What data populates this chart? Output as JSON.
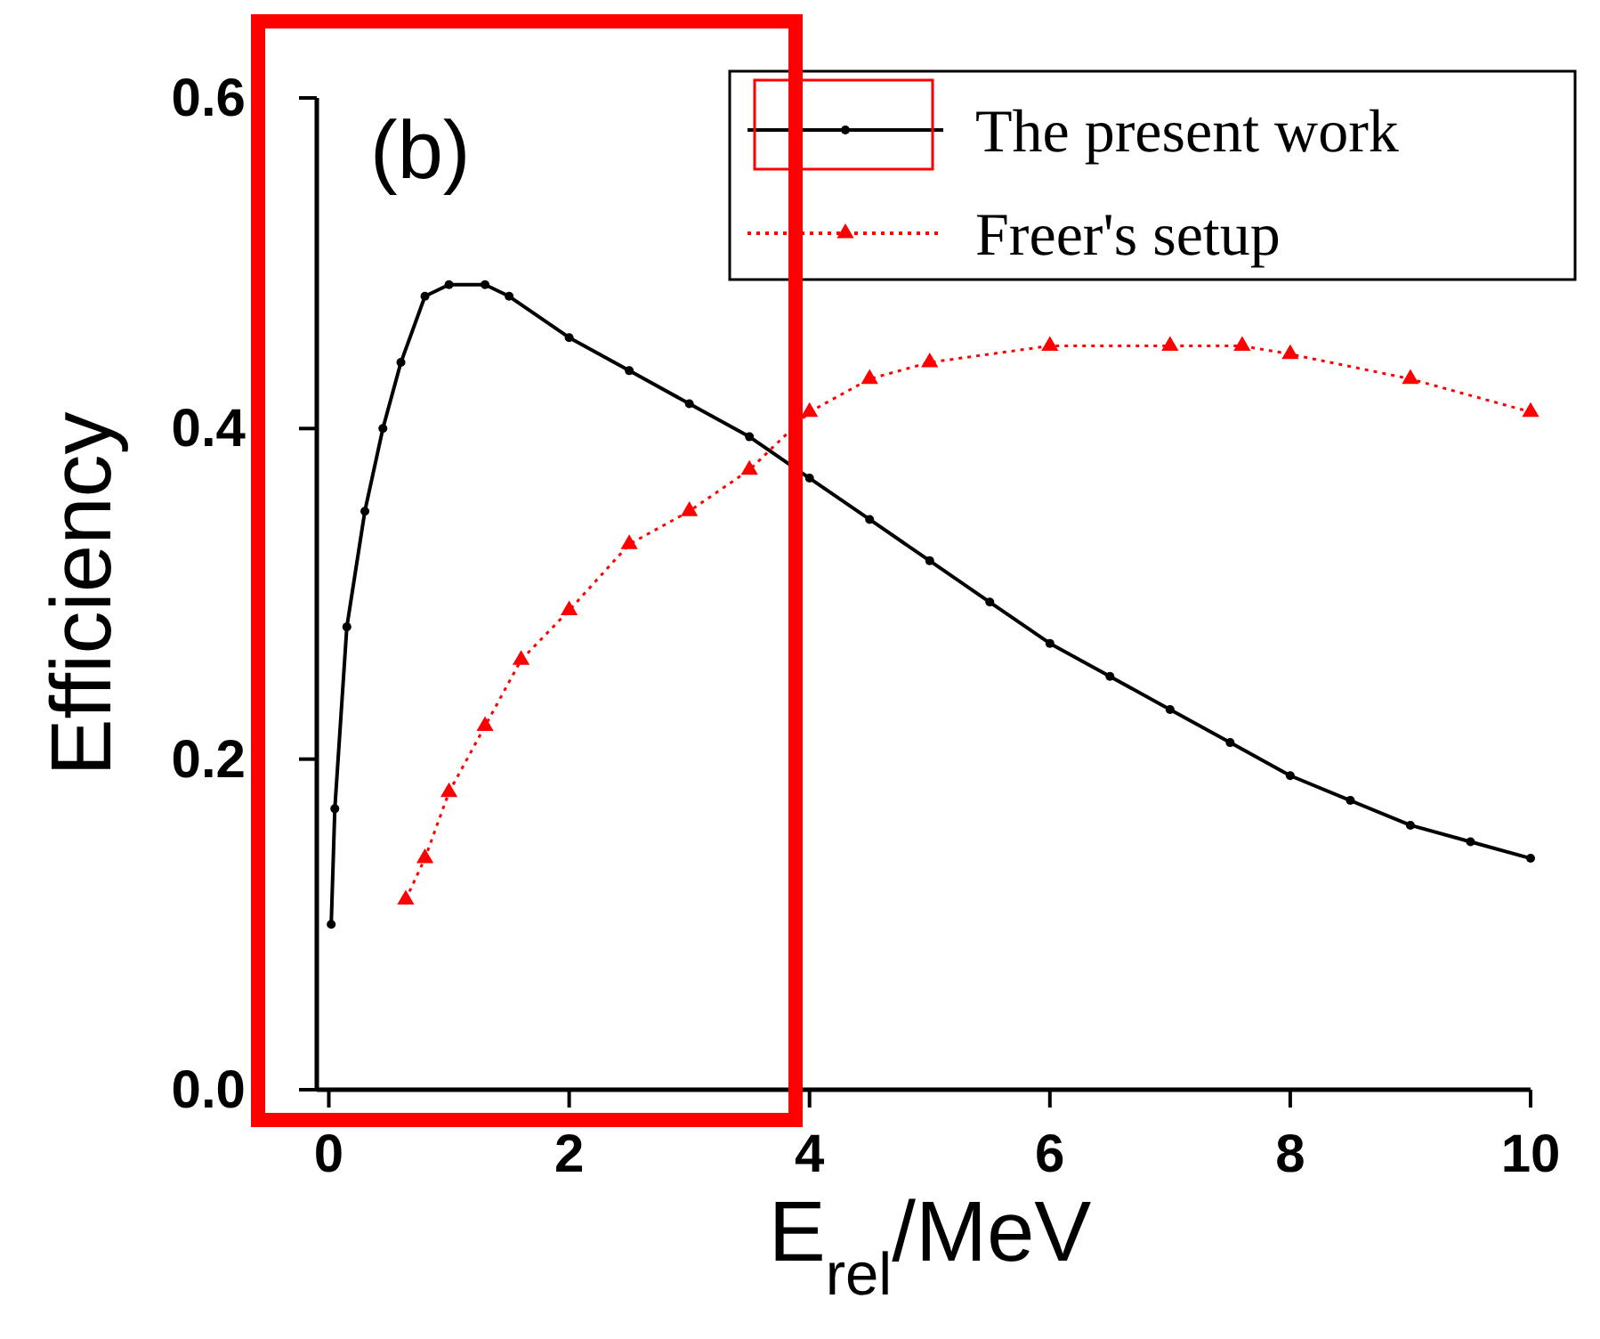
{
  "chart_data": {
    "type": "line",
    "xlabel": "E$_{rel}$/MeV",
    "ylabel": "Efficiency",
    "annotations": [
      "(b)"
    ],
    "xlim": [
      -0.1,
      10
    ],
    "ylim": [
      0,
      0.6
    ],
    "xticks": [
      0,
      2,
      4,
      6,
      8,
      10
    ],
    "yticks": [
      {
        "value": 0,
        "label": "0.0"
      },
      0.2,
      0.4,
      0.6
    ],
    "legend": "top right",
    "grid": false,
    "series": [
      {
        "name": "The present work",
        "color": "#000000",
        "marker": "circle",
        "line_style": "solid",
        "x": [
          0.02,
          0.05,
          0.15,
          0.3,
          0.45,
          0.6,
          0.8,
          1.0,
          1.3,
          1.5,
          2,
          2.5,
          3,
          3.5,
          4,
          4.5,
          5,
          5.5,
          6,
          6.5,
          7,
          7.5,
          8,
          8.5,
          9,
          9.5,
          10
        ],
        "values": [
          0.1,
          0.17,
          0.28,
          0.35,
          0.4,
          0.44,
          0.48,
          0.487,
          0.487,
          0.48,
          0.455,
          0.435,
          0.415,
          0.395,
          0.37,
          0.345,
          0.32,
          0.295,
          0.27,
          0.25,
          0.23,
          0.21,
          0.19,
          0.175,
          0.16,
          0.15,
          0.14
        ]
      },
      {
        "name": "Freer's setup",
        "color": "#ff0000",
        "marker": "triangle",
        "line_style": "dotted",
        "x": [
          0.64,
          0.8,
          1.0,
          1.3,
          1.6,
          2,
          2.5,
          3,
          3.5,
          4,
          4.5,
          5,
          6,
          7,
          7.6,
          8,
          9,
          10
        ],
        "values": [
          0.115,
          0.14,
          0.18,
          0.22,
          0.26,
          0.29,
          0.33,
          0.35,
          0.375,
          0.41,
          0.43,
          0.44,
          0.45,
          0.45,
          0.45,
          0.445,
          0.43,
          0.41
        ]
      }
    ]
  }
}
